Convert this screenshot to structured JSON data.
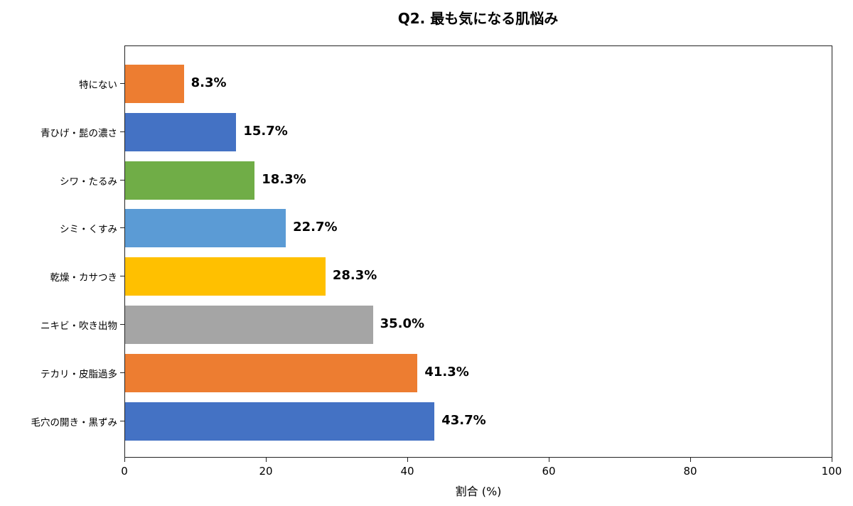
{
  "title": "Q2. 最も気になる肌悩み",
  "xaxis": {
    "label": "割合 (%)",
    "ticks": [
      "0",
      "20",
      "40",
      "60",
      "80",
      "100"
    ]
  },
  "bars": [
    {
      "label": "特にない",
      "value": 8.3,
      "text": "8.3%",
      "color": "#ED7D31"
    },
    {
      "label": "青ひげ・髭の濃さ",
      "value": 15.7,
      "text": "15.7%",
      "color": "#4472C4"
    },
    {
      "label": "シワ・たるみ",
      "value": 18.3,
      "text": "18.3%",
      "color": "#70AD47"
    },
    {
      "label": "シミ・くすみ",
      "value": 22.7,
      "text": "22.7%",
      "color": "#5B9BD5"
    },
    {
      "label": "乾燥・カサつき",
      "value": 28.3,
      "text": "28.3%",
      "color": "#FFC000"
    },
    {
      "label": "ニキビ・吹き出物",
      "value": 35.0,
      "text": "35.0%",
      "color": "#A5A5A5"
    },
    {
      "label": "テカリ・皮脂過多",
      "value": 41.3,
      "text": "41.3%",
      "color": "#ED7D31"
    },
    {
      "label": "毛穴の開き・黒ずみ",
      "value": 43.7,
      "text": "43.7%",
      "color": "#4472C4"
    }
  ],
  "chart_data": {
    "type": "bar",
    "orientation": "horizontal",
    "title": "Q2. 最も気になる肌悩み",
    "categories": [
      "特にない",
      "青ひげ・髭の濃さ",
      "シワ・たるみ",
      "シミ・くすみ",
      "乾燥・カサつき",
      "ニキビ・吹き出物",
      "テカリ・皮脂過多",
      "毛穴の開き・黒ずみ"
    ],
    "values": [
      8.3,
      15.7,
      18.3,
      22.7,
      28.3,
      35.0,
      41.3,
      43.7
    ],
    "data_labels": [
      "8.3%",
      "15.7%",
      "18.3%",
      "22.7%",
      "28.3%",
      "35.0%",
      "41.3%",
      "43.7%"
    ],
    "colors": [
      "#ED7D31",
      "#4472C4",
      "#70AD47",
      "#5B9BD5",
      "#FFC000",
      "#A5A5A5",
      "#ED7D31",
      "#4472C4"
    ],
    "xlabel": "割合 (%)",
    "ylabel": "",
    "xlim": [
      0,
      100
    ],
    "xticks": [
      0,
      20,
      40,
      60,
      80,
      100
    ],
    "grid": false,
    "legend": null
  }
}
